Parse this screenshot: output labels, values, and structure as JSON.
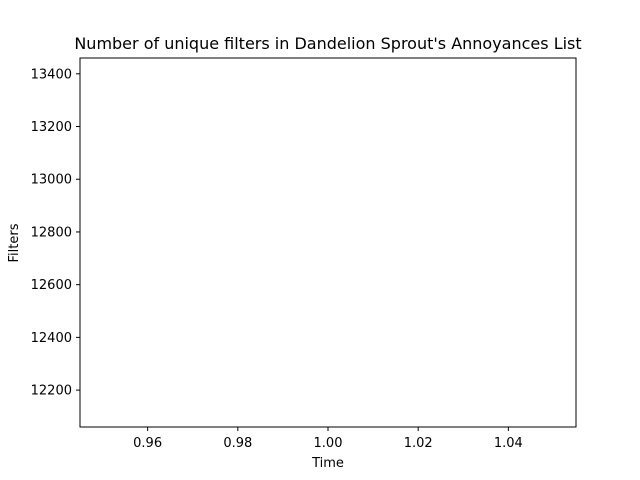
{
  "chart_data": {
    "type": "line",
    "title": "Number of unique filters in Dandelion Sprout's Annoyances List",
    "xlabel": "Time",
    "ylabel": "Filters",
    "xlim": [
      0.945,
      1.055
    ],
    "ylim": [
      12060,
      13460
    ],
    "x_ticks": [
      "0.96",
      "0.98",
      "1.00",
      "1.02",
      "1.04"
    ],
    "x_tick_values": [
      0.96,
      0.98,
      1.0,
      1.02,
      1.04
    ],
    "y_ticks": [
      "12200",
      "12400",
      "12600",
      "12800",
      "13000",
      "13200",
      "13400"
    ],
    "y_tick_values": [
      12200,
      12400,
      12600,
      12800,
      13000,
      13200,
      13400
    ],
    "grid": false,
    "series": [
      {
        "values": [],
        "x": []
      }
    ]
  }
}
